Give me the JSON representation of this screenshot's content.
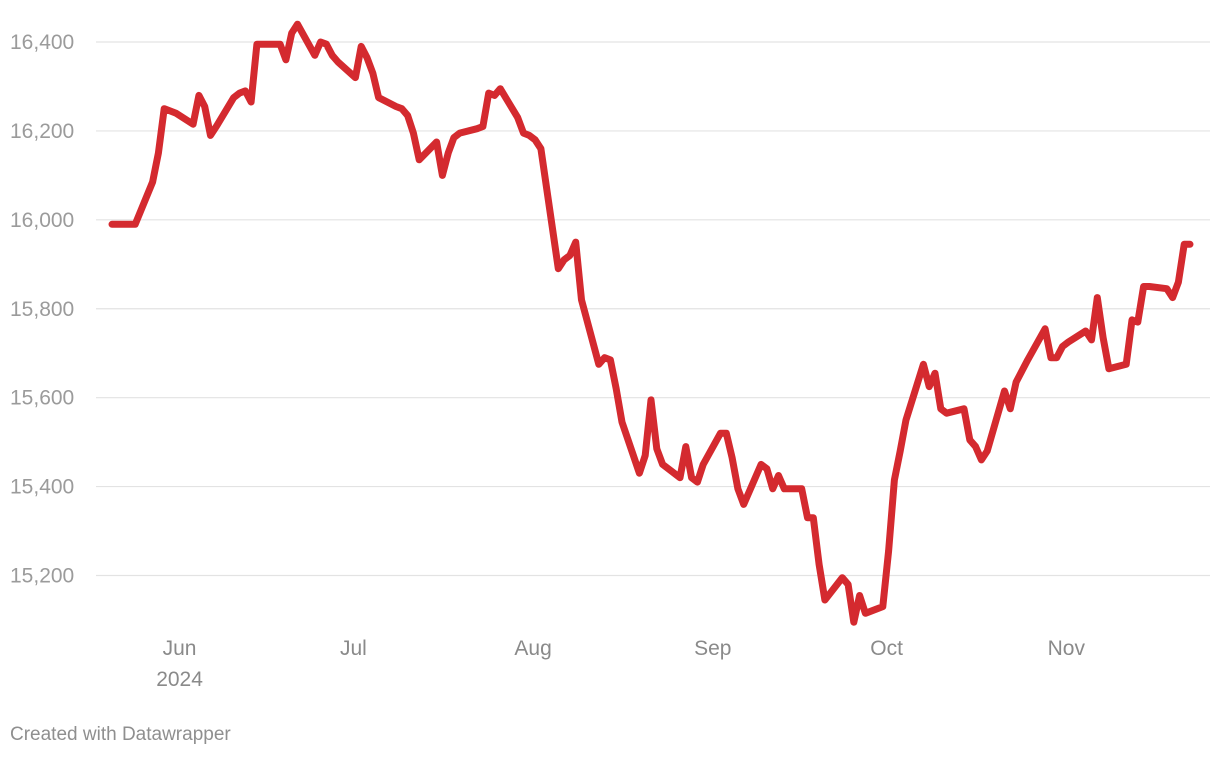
{
  "credit": "Created with Datawrapper",
  "chart_data": {
    "type": "line",
    "title": "",
    "xlabel": "",
    "ylabel": "",
    "ylim": [
      15090,
      16450
    ],
    "xlim": [
      "2024-05-20",
      "2024-11-22"
    ],
    "y_ticks": [
      {
        "value": 15200,
        "label": "15,200"
      },
      {
        "value": 15400,
        "label": "15,400"
      },
      {
        "value": 15600,
        "label": "15,600"
      },
      {
        "value": 15800,
        "label": "15,800"
      },
      {
        "value": 16000,
        "label": "16,000"
      },
      {
        "value": 16200,
        "label": "16,200"
      },
      {
        "value": 16400,
        "label": "16,400"
      }
    ],
    "x_ticks": [
      {
        "date": "2024-06-01",
        "label": "Jun",
        "sublabel": "2024"
      },
      {
        "date": "2024-07-01",
        "label": "Jul",
        "sublabel": ""
      },
      {
        "date": "2024-08-01",
        "label": "Aug",
        "sublabel": ""
      },
      {
        "date": "2024-09-01",
        "label": "Sep",
        "sublabel": ""
      },
      {
        "date": "2024-10-01",
        "label": "Oct",
        "sublabel": ""
      },
      {
        "date": "2024-11-01",
        "label": "Nov",
        "sublabel": ""
      }
    ],
    "grid": true,
    "legend": "none",
    "series": [
      {
        "color": "#d42a2f",
        "x": [
          "2024-05-20",
          "2024-05-21",
          "2024-05-22",
          "2024-05-23",
          "2024-05-24",
          "2024-05-27",
          "2024-05-28",
          "2024-05-29",
          "2024-05-30",
          "2024-05-31",
          "2024-06-03",
          "2024-06-04",
          "2024-06-05",
          "2024-06-06",
          "2024-06-07",
          "2024-06-10",
          "2024-06-11",
          "2024-06-12",
          "2024-06-13",
          "2024-06-14",
          "2024-06-17",
          "2024-06-18",
          "2024-06-19",
          "2024-06-20",
          "2024-06-21",
          "2024-06-24",
          "2024-06-25",
          "2024-06-26",
          "2024-06-27",
          "2024-06-28",
          "2024-07-01",
          "2024-07-02",
          "2024-07-03",
          "2024-07-04",
          "2024-07-05",
          "2024-07-08",
          "2024-07-09",
          "2024-07-10",
          "2024-07-11",
          "2024-07-12",
          "2024-07-15",
          "2024-07-16",
          "2024-07-17",
          "2024-07-18",
          "2024-07-19",
          "2024-07-22",
          "2024-07-23",
          "2024-07-24",
          "2024-07-25",
          "2024-07-26",
          "2024-07-29",
          "2024-07-30",
          "2024-07-31",
          "2024-08-01",
          "2024-08-02",
          "2024-08-05",
          "2024-08-06",
          "2024-08-07",
          "2024-08-08",
          "2024-08-09",
          "2024-08-12",
          "2024-08-13",
          "2024-08-14",
          "2024-08-15",
          "2024-08-16",
          "2024-08-19",
          "2024-08-20",
          "2024-08-21",
          "2024-08-22",
          "2024-08-23",
          "2024-08-26",
          "2024-08-27",
          "2024-08-28",
          "2024-08-29",
          "2024-08-30",
          "2024-09-02",
          "2024-09-03",
          "2024-09-04",
          "2024-09-05",
          "2024-09-06",
          "2024-09-09",
          "2024-09-10",
          "2024-09-11",
          "2024-09-12",
          "2024-09-13",
          "2024-09-16",
          "2024-09-17",
          "2024-09-18",
          "2024-09-19",
          "2024-09-20",
          "2024-09-23",
          "2024-09-24",
          "2024-09-25",
          "2024-09-26",
          "2024-09-27",
          "2024-09-30",
          "2024-10-01",
          "2024-10-02",
          "2024-10-03",
          "2024-10-04",
          "2024-10-07",
          "2024-10-08",
          "2024-10-09",
          "2024-10-10",
          "2024-10-11",
          "2024-10-14",
          "2024-10-15",
          "2024-10-16",
          "2024-10-17",
          "2024-10-18",
          "2024-10-21",
          "2024-10-22",
          "2024-10-23",
          "2024-10-24",
          "2024-10-25",
          "2024-10-28",
          "2024-10-29",
          "2024-10-30",
          "2024-10-31",
          "2024-11-01",
          "2024-11-04",
          "2024-11-05",
          "2024-11-06",
          "2024-11-07",
          "2024-11-08",
          "2024-11-11",
          "2024-11-12",
          "2024-11-13",
          "2024-11-14",
          "2024-11-15",
          "2024-11-18",
          "2024-11-19",
          "2024-11-20",
          "2024-11-21",
          "2024-11-22"
        ],
        "values": [
          15990,
          15990,
          15990,
          15990,
          15990,
          16085,
          16150,
          16250,
          16245,
          16240,
          16215,
          16280,
          16255,
          16190,
          16210,
          16275,
          16285,
          16290,
          16265,
          16395,
          16395,
          16395,
          16360,
          16420,
          16440,
          16370,
          16400,
          16395,
          16370,
          16355,
          16320,
          16390,
          16365,
          16330,
          16275,
          16255,
          16250,
          16235,
          16195,
          16135,
          16175,
          16100,
          16150,
          16185,
          16195,
          16205,
          16210,
          16285,
          16280,
          16295,
          16230,
          16195,
          16190,
          16180,
          16160,
          15890,
          15910,
          15920,
          15950,
          15820,
          15675,
          15690,
          15685,
          15620,
          15545,
          15430,
          15470,
          15595,
          15485,
          15450,
          15420,
          15490,
          15420,
          15410,
          15450,
          15520,
          15520,
          15465,
          15395,
          15360,
          15450,
          15440,
          15395,
          15425,
          15395,
          15395,
          15330,
          15330,
          15225,
          15145,
          15195,
          15180,
          15095,
          15155,
          15115,
          15130,
          15255,
          15415,
          15480,
          15550,
          15675,
          15625,
          15655,
          15575,
          15565,
          15575,
          15505,
          15490,
          15460,
          15480,
          15615,
          15575,
          15635,
          15660,
          15685,
          15755,
          15690,
          15690,
          15715,
          15725,
          15750,
          15730,
          15825,
          15735,
          15665,
          15675,
          15775,
          15770,
          15850,
          15850,
          15845,
          15825,
          15860,
          15945,
          15945
        ]
      }
    ]
  }
}
